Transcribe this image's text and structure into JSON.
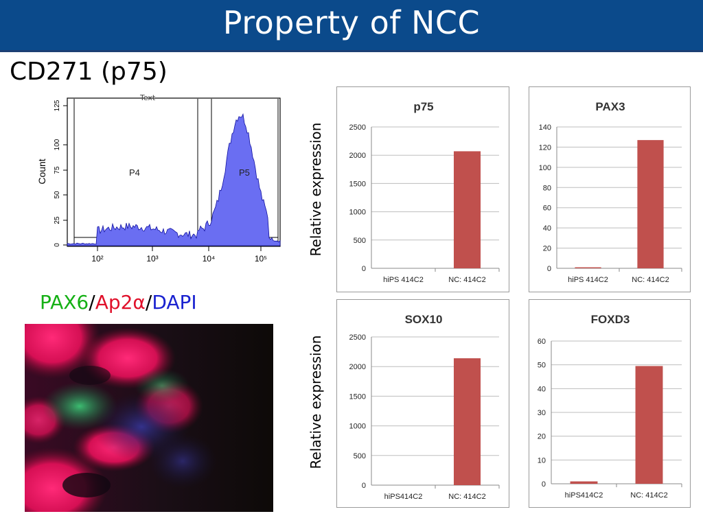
{
  "slide": {
    "title": "Property of NCC",
    "cd271_label": "CD271 (p75)",
    "stain_label": {
      "pax6": "PAX6",
      "sep1": "/",
      "ap2a": "Ap2α",
      "sep2": "/",
      "dapi": "DAPI"
    },
    "ylabel_top": "Relative expression",
    "ylabel_bottom": "Relative expression"
  },
  "flow": {
    "ylabel": "Count",
    "yticks": [
      "0",
      "25",
      "50",
      "75",
      "100",
      "125"
    ],
    "xticks": [
      "10²",
      "10³",
      "10⁴",
      "10⁵"
    ],
    "gates": [
      "P4",
      "P5"
    ],
    "top_text": "Text"
  },
  "colors": {
    "bar": "#c0504d",
    "histogram_fill": "#6a6ef2",
    "histogram_line": "#1010a0",
    "title_bar": "#0b4a8b"
  },
  "chart_data": [
    {
      "type": "bar",
      "title": "p75",
      "categories": [
        "hiPS 414C2",
        "NC: 414C2"
      ],
      "values": [
        0,
        2070
      ],
      "ylim": [
        0,
        2500
      ],
      "yticks": [
        0,
        500,
        1000,
        1500,
        2000,
        2500
      ],
      "grid": true,
      "legend": "none"
    },
    {
      "type": "bar",
      "title": "PAX3",
      "categories": [
        "hiPS 414C2",
        "NC: 414C2"
      ],
      "values": [
        1,
        127
      ],
      "ylim": [
        0,
        140
      ],
      "yticks": [
        0,
        20,
        40,
        60,
        80,
        100,
        120,
        140
      ],
      "grid": true,
      "legend": "none"
    },
    {
      "type": "bar",
      "title": "SOX10",
      "categories": [
        "hiPS414C2",
        "NC: 414C2"
      ],
      "values": [
        0,
        2140
      ],
      "ylim": [
        0,
        2500
      ],
      "yticks": [
        0,
        500,
        1000,
        1500,
        2000,
        2500
      ],
      "grid": true,
      "legend": "none"
    },
    {
      "type": "bar",
      "title": "FOXD3",
      "categories": [
        "hiPS414C2",
        "NC: 414C2"
      ],
      "values": [
        1,
        49.5
      ],
      "ylim": [
        0,
        60
      ],
      "yticks": [
        0,
        10,
        20,
        30,
        40,
        50,
        60
      ],
      "grid": true,
      "legend": "none"
    }
  ]
}
